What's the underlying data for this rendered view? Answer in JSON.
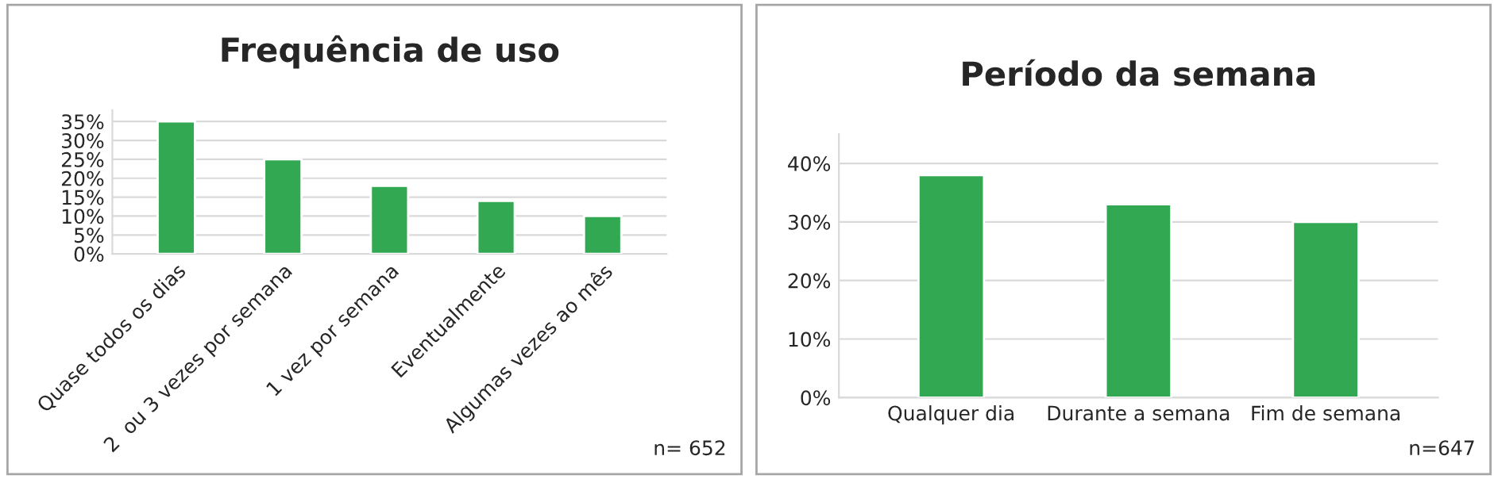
{
  "chart_data": [
    {
      "type": "bar",
      "title": "Frequência de uso",
      "categories": [
        "Quase todos os dias",
        "2  ou 3 vezes por semana",
        "1 vez por semana",
        "Eventualmente",
        "Algumas vezes ao mês"
      ],
      "values": [
        35,
        25,
        18,
        14,
        10
      ],
      "color": "#33a852",
      "ylim": [
        0,
        38
      ],
      "yticks": [
        {
          "value": 0,
          "label": "0%"
        },
        {
          "value": 5,
          "label": "5%"
        },
        {
          "value": 10,
          "label": "10%"
        },
        {
          "value": 15,
          "label": "15%"
        },
        {
          "value": 20,
          "label": "20%"
        },
        {
          "value": 25,
          "label": "25%"
        },
        {
          "value": 30,
          "label": "30%"
        },
        {
          "value": 35,
          "label": "35%"
        }
      ],
      "grid": "y",
      "annotations": [
        "n= 652"
      ]
    },
    {
      "type": "bar",
      "title": "Período da semana",
      "categories": [
        "Qualquer dia",
        "Durante a semana",
        "Fim de semana"
      ],
      "values": [
        38,
        33,
        30
      ],
      "color": "#33a852",
      "ylim": [
        0,
        45
      ],
      "yticks": [
        {
          "value": 0,
          "label": "0%"
        },
        {
          "value": 10,
          "label": "10%"
        },
        {
          "value": 20,
          "label": "20%"
        },
        {
          "value": 30,
          "label": "30%"
        },
        {
          "value": 40,
          "label": "40%"
        }
      ],
      "grid": "y",
      "annotations": [
        "n=647"
      ]
    }
  ]
}
